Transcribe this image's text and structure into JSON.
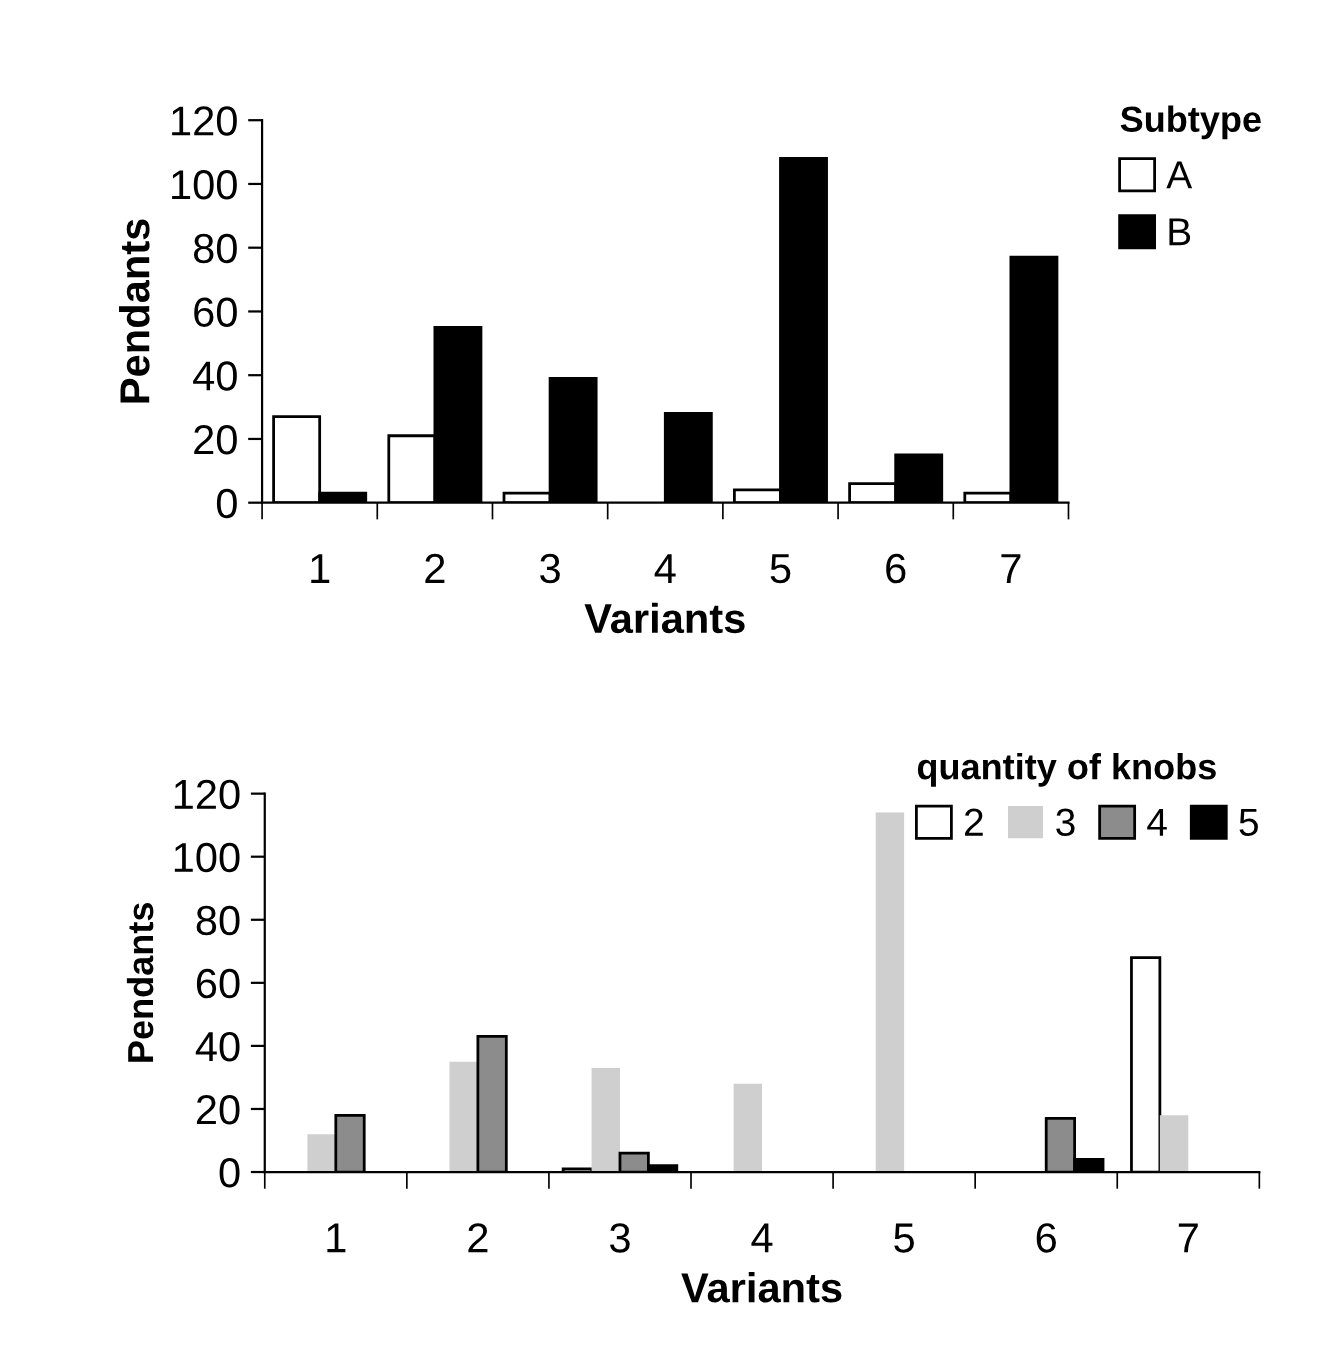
{
  "chart_data": [
    {
      "type": "bar",
      "xlabel": "Variants",
      "ylabel": "Pendants",
      "legend_title": "Subtype",
      "legend": "top right",
      "categories": [
        "1",
        "2",
        "3",
        "4",
        "5",
        "6",
        "7"
      ],
      "ylim": [
        0,
        120
      ],
      "yticks": [
        0,
        20,
        40,
        60,
        80,
        100,
        120
      ],
      "grid": false,
      "series": [
        {
          "name": "A",
          "color": "#ffffff",
          "values": [
            27,
            21,
            3,
            null,
            4,
            6,
            3
          ]
        },
        {
          "name": "B",
          "color": "#000000",
          "values": [
            3,
            55,
            39,
            28,
            108,
            15,
            77
          ]
        }
      ]
    },
    {
      "type": "bar",
      "xlabel": "Variants",
      "ylabel": "Pendants",
      "legend_title": "quantity of knobs",
      "legend": "top right",
      "categories": [
        "1",
        "2",
        "3",
        "4",
        "5",
        "6",
        "7"
      ],
      "ylim": [
        0,
        120
      ],
      "yticks": [
        0,
        20,
        40,
        60,
        80,
        100,
        120
      ],
      "grid": false,
      "series": [
        {
          "name": "2",
          "color": "#ffffff",
          "values": [
            null,
            null,
            1,
            null,
            null,
            null,
            68
          ]
        },
        {
          "name": "3",
          "color": "#cfcfcf",
          "values": [
            12,
            35,
            33,
            28,
            114,
            null,
            18
          ]
        },
        {
          "name": "4",
          "color": "#8c8c8c",
          "values": [
            18,
            43,
            6,
            null,
            null,
            17,
            null
          ]
        },
        {
          "name": "5",
          "color": "#000000",
          "values": [
            null,
            null,
            2,
            null,
            null,
            4,
            null
          ]
        }
      ]
    }
  ]
}
